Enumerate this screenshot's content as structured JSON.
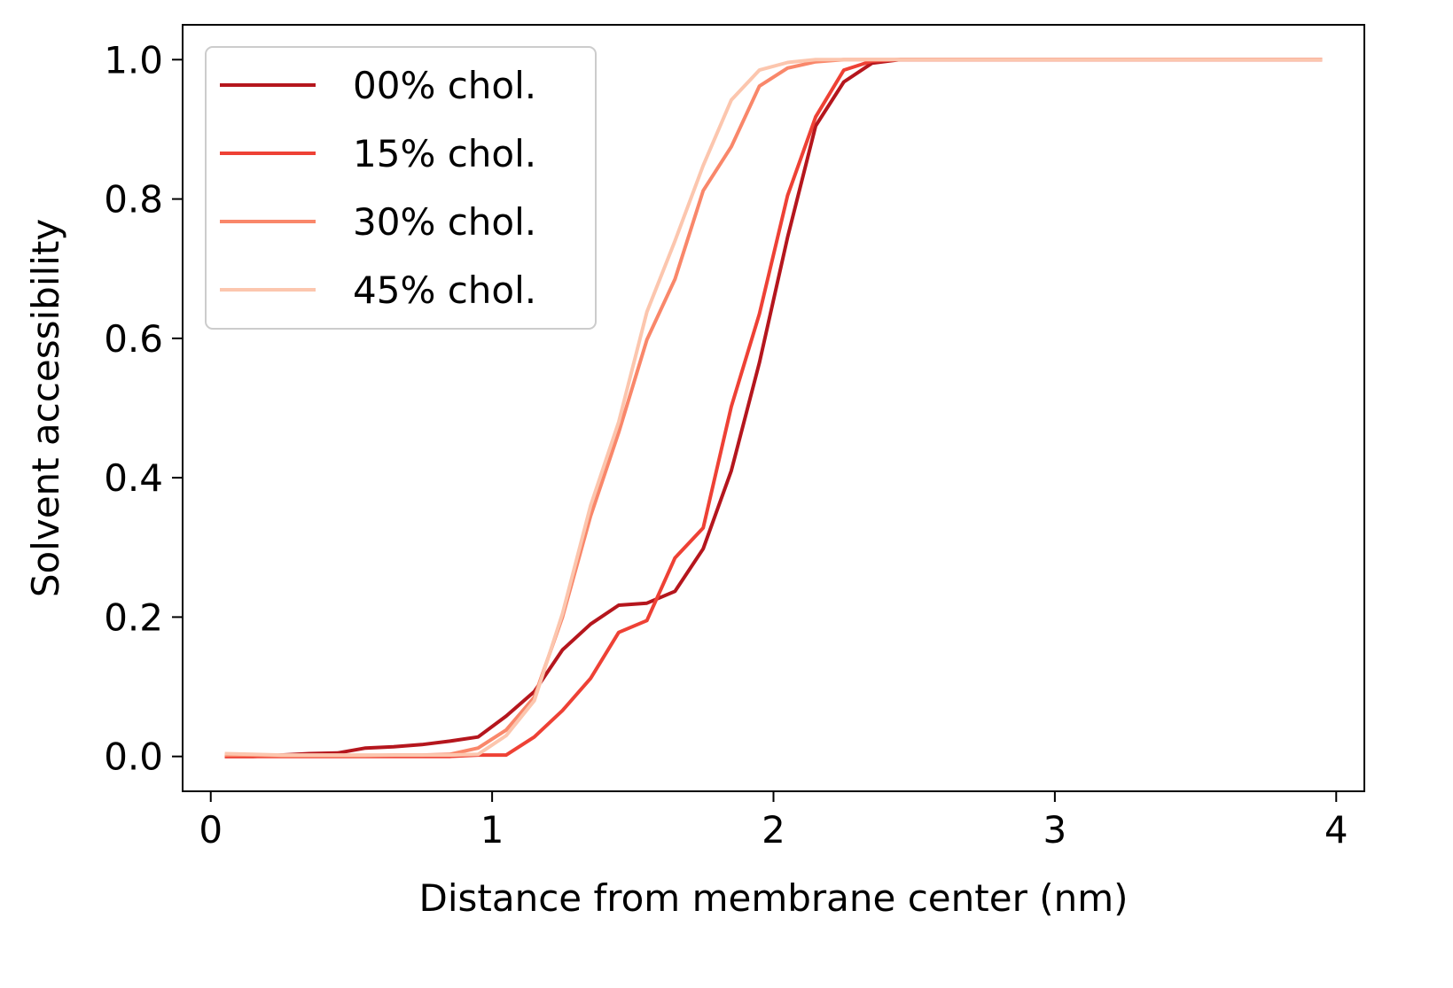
{
  "chart_data": {
    "type": "line",
    "xlabel": "Distance from membrane center (nm)",
    "ylabel": "Solvent accessibility",
    "xlim": [
      -0.1,
      4.1
    ],
    "ylim": [
      -0.05,
      1.05
    ],
    "xticks": [
      0,
      1,
      2,
      3,
      4
    ],
    "xtick_labels": [
      "0",
      "1",
      "2",
      "3",
      "4"
    ],
    "yticks": [
      0.0,
      0.2,
      0.4,
      0.6,
      0.8,
      1.0
    ],
    "ytick_labels": [
      "0.0",
      "0.2",
      "0.4",
      "0.6",
      "0.8",
      "1.0"
    ],
    "grid": false,
    "legend_position": "upper-left",
    "x": [
      0.05,
      0.15,
      0.25,
      0.35,
      0.45,
      0.55,
      0.65,
      0.75,
      0.85,
      0.95,
      1.05,
      1.15,
      1.25,
      1.35,
      1.45,
      1.55,
      1.65,
      1.75,
      1.85,
      1.95,
      2.05,
      2.15,
      2.25,
      2.35,
      2.45,
      2.55,
      2.65,
      2.75,
      2.85,
      2.95,
      3.05,
      3.15,
      3.25,
      3.35,
      3.45,
      3.55,
      3.65,
      3.75,
      3.85,
      3.95
    ],
    "series": [
      {
        "name": "00% chol.",
        "color": "#b5161d",
        "values": [
          0.0,
          0.0,
          0.002,
          0.004,
          0.005,
          0.012,
          0.014,
          0.017,
          0.022,
          0.028,
          0.058,
          0.093,
          0.153,
          0.19,
          0.217,
          0.22,
          0.237,
          0.298,
          0.41,
          0.565,
          0.745,
          0.905,
          0.968,
          0.995,
          1.0,
          1.0,
          1.0,
          1.0,
          1.0,
          1.0,
          1.0,
          1.0,
          1.0,
          1.0,
          1.0,
          1.0,
          1.0,
          1.0,
          1.0,
          1.0
        ]
      },
      {
        "name": "15% chol.",
        "color": "#ee4135",
        "values": [
          0.0,
          0.0,
          0.0,
          0.0,
          0.0,
          0.0,
          0.0,
          0.0,
          0.0,
          0.002,
          0.002,
          0.028,
          0.066,
          0.112,
          0.178,
          0.195,
          0.285,
          0.328,
          0.502,
          0.635,
          0.805,
          0.918,
          0.985,
          0.998,
          1.0,
          1.0,
          1.0,
          1.0,
          1.0,
          1.0,
          1.0,
          1.0,
          1.0,
          1.0,
          1.0,
          1.0,
          1.0,
          1.0,
          1.0,
          1.0
        ]
      },
      {
        "name": "30% chol.",
        "color": "#f9876a",
        "values": [
          0.002,
          0.002,
          0.001,
          0.001,
          0.001,
          0.001,
          0.002,
          0.002,
          0.003,
          0.012,
          0.038,
          0.085,
          0.2,
          0.345,
          0.465,
          0.598,
          0.685,
          0.812,
          0.875,
          0.962,
          0.988,
          0.997,
          1.0,
          1.0,
          1.0,
          1.0,
          1.0,
          1.0,
          1.0,
          1.0,
          1.0,
          1.0,
          1.0,
          1.0,
          1.0,
          1.0,
          1.0,
          1.0,
          1.0,
          1.0
        ]
      },
      {
        "name": "45% chol.",
        "color": "#fcc6ae",
        "values": [
          0.004,
          0.003,
          0.002,
          0.002,
          0.002,
          0.002,
          0.002,
          0.002,
          0.002,
          0.003,
          0.03,
          0.08,
          0.205,
          0.36,
          0.48,
          0.638,
          0.74,
          0.848,
          0.942,
          0.985,
          0.996,
          1.0,
          1.0,
          1.0,
          1.0,
          1.0,
          1.0,
          1.0,
          1.0,
          1.0,
          1.0,
          1.0,
          1.0,
          1.0,
          1.0,
          1.0,
          1.0,
          1.0,
          1.0,
          1.0
        ]
      }
    ]
  }
}
